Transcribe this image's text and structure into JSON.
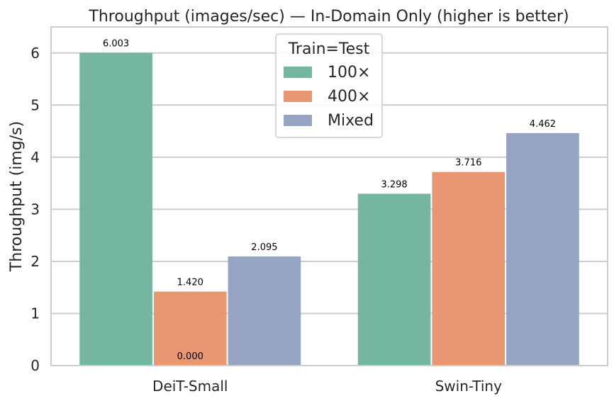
{
  "chart_data": {
    "type": "bar",
    "title": "Throughput (images/sec) — In-Domain Only (higher is better)",
    "xlabel": "",
    "ylabel": "Throughput (img/s)",
    "ylim": [
      0,
      6.5
    ],
    "yticks": [
      "0",
      "1",
      "2",
      "3",
      "4",
      "5",
      "6"
    ],
    "grid": "y",
    "categories": [
      "DeiT-Small",
      "Swin-Tiny"
    ],
    "legend": {
      "title": "Train=Test",
      "placement": "top-center"
    },
    "series": [
      {
        "name": "100×",
        "color": "#75b6a0",
        "values": [
          6.003,
          3.298
        ],
        "labels": [
          "6.003",
          "3.298"
        ]
      },
      {
        "name": "400×",
        "color": "#e99673",
        "values": [
          1.42,
          3.716
        ],
        "labels": [
          "1.420",
          "3.716"
        ]
      },
      {
        "name": "Mixed",
        "color": "#95a4c3",
        "values": [
          2.095,
          4.462
        ],
        "labels": [
          "2.095",
          "4.462"
        ]
      }
    ],
    "annotations": [
      {
        "text": "0.000",
        "category": 0,
        "series": 1
      }
    ]
  }
}
